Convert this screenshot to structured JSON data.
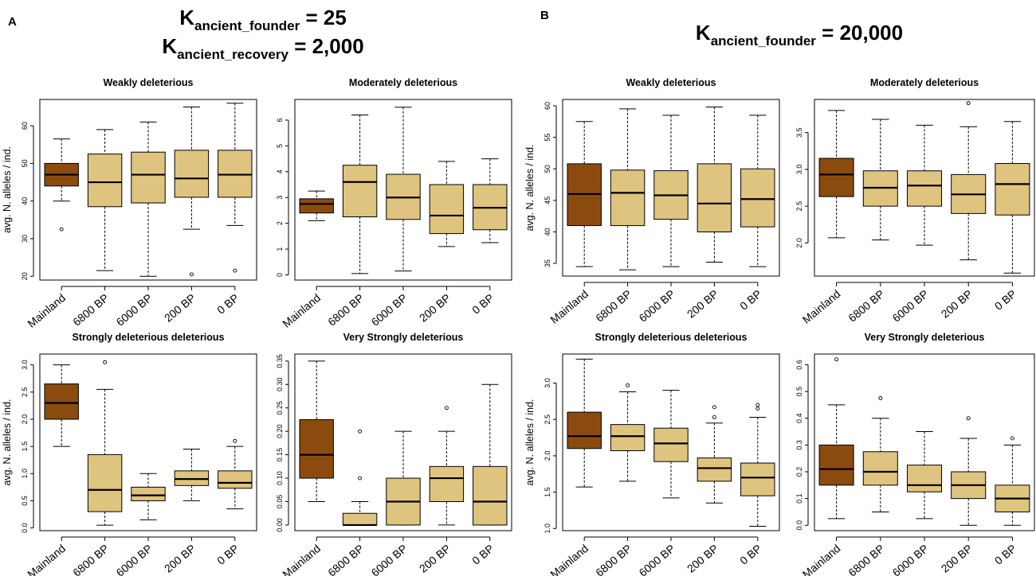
{
  "figure": {
    "panel_a_letter": "A",
    "panel_b_letter": "B",
    "header_a": [
      {
        "main": "K",
        "sub": "ancient_founder",
        "rest": " = 25"
      },
      {
        "main": "K",
        "sub": "ancient_recovery",
        "rest": " = 2,000"
      }
    ],
    "header_b": [
      {
        "main": "K",
        "sub": "ancient_founder",
        "rest": " = 20,000"
      }
    ]
  },
  "colors": {
    "mainland": "#8B4B0E",
    "island": "#DFC47F"
  },
  "chart_data": [
    {
      "type": "box",
      "panel": "A",
      "title": "Weakly deleterious",
      "ylabel": "avg. N. alleles / ind.",
      "categories": [
        "Mainland",
        "6800 BP",
        "6000 BP",
        "200 BP",
        "0 BP"
      ],
      "ylim": [
        19,
        67
      ],
      "yticks": [
        20,
        30,
        40,
        50,
        60
      ],
      "boxes": [
        {
          "min": 40,
          "q1": 44,
          "median": 47,
          "q3": 50,
          "max": 56.5,
          "outliers": [
            32.5
          ]
        },
        {
          "min": 21.5,
          "q1": 38.5,
          "median": 45,
          "q3": 52.5,
          "max": 59,
          "outliers": []
        },
        {
          "min": 20,
          "q1": 39.5,
          "median": 47,
          "q3": 53,
          "max": 61,
          "outliers": []
        },
        {
          "min": 32.5,
          "q1": 41,
          "median": 46,
          "q3": 53.5,
          "max": 65,
          "outliers": [
            20.5
          ]
        },
        {
          "min": 33.5,
          "q1": 41,
          "median": 47,
          "q3": 53.5,
          "max": 66,
          "outliers": [
            21.5
          ]
        }
      ]
    },
    {
      "type": "box",
      "panel": "A",
      "title": "Moderately deleterious",
      "ylabel": "",
      "categories": [
        "Mainland",
        "6800 BP",
        "6000 BP",
        "200 BP",
        "0 BP"
      ],
      "ylim": [
        -0.2,
        6.8
      ],
      "yticks": [
        0,
        1,
        2,
        3,
        4,
        5,
        6
      ],
      "boxes": [
        {
          "min": 2.1,
          "q1": 2.4,
          "median": 2.75,
          "q3": 2.95,
          "max": 3.25,
          "outliers": []
        },
        {
          "min": 0.05,
          "q1": 2.25,
          "median": 3.6,
          "q3": 4.25,
          "max": 6.2,
          "outliers": []
        },
        {
          "min": 0.15,
          "q1": 2.15,
          "median": 3.0,
          "q3": 3.9,
          "max": 6.5,
          "outliers": []
        },
        {
          "min": 1.1,
          "q1": 1.6,
          "median": 2.3,
          "q3": 3.5,
          "max": 4.4,
          "outliers": []
        },
        {
          "min": 1.25,
          "q1": 1.75,
          "median": 2.6,
          "q3": 3.5,
          "max": 4.5,
          "outliers": []
        }
      ]
    },
    {
      "type": "box",
      "panel": "A",
      "title": "Strongly deleterious deleterious",
      "ylabel": "avg. N. alleles / ind.",
      "categories": [
        "Mainland",
        "6800 BP",
        "6000 BP",
        "200 BP",
        "0 BP"
      ],
      "ylim": [
        -0.05,
        3.2
      ],
      "yticks": [
        0.0,
        0.5,
        1.0,
        1.5,
        2.0,
        2.5,
        3.0
      ],
      "boxes": [
        {
          "min": 1.5,
          "q1": 2.0,
          "median": 2.3,
          "q3": 2.65,
          "max": 3.0,
          "outliers": []
        },
        {
          "min": 0.05,
          "q1": 0.3,
          "median": 0.7,
          "q3": 1.35,
          "max": 2.55,
          "outliers": [
            3.05
          ]
        },
        {
          "min": 0.15,
          "q1": 0.5,
          "median": 0.6,
          "q3": 0.75,
          "max": 1.0,
          "outliers": []
        },
        {
          "min": 0.5,
          "q1": 0.78,
          "median": 0.9,
          "q3": 1.05,
          "max": 1.45,
          "outliers": []
        },
        {
          "min": 0.35,
          "q1": 0.73,
          "median": 0.83,
          "q3": 1.05,
          "max": 1.5,
          "outliers": [
            1.6
          ]
        }
      ]
    },
    {
      "type": "box",
      "panel": "A",
      "title": "Very Strongly deleterious",
      "ylabel": "",
      "categories": [
        "Mainland",
        "6800 BP",
        "6000 BP",
        "200 BP",
        "0 BP"
      ],
      "ylim": [
        -0.012,
        0.365
      ],
      "yticks": [
        0.0,
        0.05,
        0.1,
        0.15,
        0.2,
        0.25,
        0.3,
        0.35
      ],
      "boxes": [
        {
          "min": 0.05,
          "q1": 0.1,
          "median": 0.15,
          "q3": 0.225,
          "max": 0.35,
          "outliers": []
        },
        {
          "min": 0.0,
          "q1": 0.0,
          "median": 0.0,
          "q3": 0.025,
          "max": 0.05,
          "outliers": [
            0.1,
            0.2
          ]
        },
        {
          "min": 0.0,
          "q1": 0.0,
          "median": 0.05,
          "q3": 0.1,
          "max": 0.2,
          "outliers": []
        },
        {
          "min": 0.0,
          "q1": 0.05,
          "median": 0.1,
          "q3": 0.125,
          "max": 0.2,
          "outliers": [
            0.25
          ]
        },
        {
          "min": 0.0,
          "q1": 0.0,
          "median": 0.05,
          "q3": 0.125,
          "max": 0.3,
          "outliers": []
        }
      ]
    },
    {
      "type": "box",
      "panel": "B",
      "title": "Weakly deleterious",
      "ylabel": "avg. N. alleles / ind.",
      "categories": [
        "Mainland",
        "6800 BP",
        "6000 BP",
        "200 BP",
        "0 BP"
      ],
      "ylim": [
        33,
        61
      ],
      "yticks": [
        35,
        40,
        45,
        50,
        55,
        60
      ],
      "boxes": [
        {
          "min": 34.5,
          "q1": 41,
          "median": 46,
          "q3": 50.8,
          "max": 57.5,
          "outliers": []
        },
        {
          "min": 34,
          "q1": 41,
          "median": 46.2,
          "q3": 49.8,
          "max": 59.5,
          "outliers": []
        },
        {
          "min": 34.5,
          "q1": 42,
          "median": 45.8,
          "q3": 49.7,
          "max": 58.5,
          "outliers": []
        },
        {
          "min": 35.2,
          "q1": 40,
          "median": 44.5,
          "q3": 50.8,
          "max": 59.8,
          "outliers": []
        },
        {
          "min": 34.5,
          "q1": 40.8,
          "median": 45.2,
          "q3": 50,
          "max": 58.5,
          "outliers": []
        }
      ]
    },
    {
      "type": "box",
      "panel": "B",
      "title": "Moderately deleterious",
      "ylabel": "",
      "categories": [
        "Mainland",
        "6800 BP",
        "6000 BP",
        "200 BP",
        "0 BP"
      ],
      "ylim": [
        1.55,
        3.95
      ],
      "yticks": [
        2.0,
        2.5,
        3.0,
        3.5
      ],
      "boxes": [
        {
          "min": 2.07,
          "q1": 2.63,
          "median": 2.93,
          "q3": 3.15,
          "max": 3.8,
          "outliers": []
        },
        {
          "min": 2.04,
          "q1": 2.5,
          "median": 2.75,
          "q3": 2.98,
          "max": 3.68,
          "outliers": []
        },
        {
          "min": 1.97,
          "q1": 2.5,
          "median": 2.78,
          "q3": 2.98,
          "max": 3.6,
          "outliers": []
        },
        {
          "min": 1.77,
          "q1": 2.4,
          "median": 2.66,
          "q3": 2.93,
          "max": 3.58,
          "outliers": [
            3.9
          ]
        },
        {
          "min": 1.59,
          "q1": 2.38,
          "median": 2.8,
          "q3": 3.08,
          "max": 3.65,
          "outliers": []
        }
      ]
    },
    {
      "type": "box",
      "panel": "B",
      "title": "Strongly deleterious deleterious",
      "ylabel": "avg. N. alleles / ind.",
      "categories": [
        "Mainland",
        "6800 BP",
        "6000 BP",
        "200 BP",
        "0 BP"
      ],
      "ylim": [
        0.97,
        3.4
      ],
      "yticks": [
        1.0,
        1.5,
        2.0,
        2.5,
        3.0
      ],
      "boxes": [
        {
          "min": 1.57,
          "q1": 2.1,
          "median": 2.27,
          "q3": 2.6,
          "max": 3.33,
          "outliers": []
        },
        {
          "min": 1.65,
          "q1": 2.07,
          "median": 2.27,
          "q3": 2.43,
          "max": 2.88,
          "outliers": [
            2.97
          ]
        },
        {
          "min": 1.42,
          "q1": 1.92,
          "median": 2.17,
          "q3": 2.38,
          "max": 2.9,
          "outliers": []
        },
        {
          "min": 1.35,
          "q1": 1.65,
          "median": 1.83,
          "q3": 1.97,
          "max": 2.45,
          "outliers": [
            2.53,
            2.67
          ]
        },
        {
          "min": 1.03,
          "q1": 1.45,
          "median": 1.7,
          "q3": 1.9,
          "max": 2.53,
          "outliers": [
            2.65,
            2.7
          ]
        }
      ]
    },
    {
      "type": "box",
      "panel": "B",
      "title": "Very Strongly deleterious",
      "ylabel": "",
      "categories": [
        "Mainland",
        "6800 BP",
        "6000 BP",
        "200 BP",
        "0 BP"
      ],
      "ylim": [
        -0.02,
        0.64
      ],
      "yticks": [
        0.0,
        0.1,
        0.2,
        0.3,
        0.4,
        0.5,
        0.6
      ],
      "boxes": [
        {
          "min": 0.025,
          "q1": 0.15,
          "median": 0.21,
          "q3": 0.3,
          "max": 0.45,
          "outliers": [
            0.62
          ]
        },
        {
          "min": 0.05,
          "q1": 0.15,
          "median": 0.2,
          "q3": 0.275,
          "max": 0.4,
          "outliers": [
            0.475
          ]
        },
        {
          "min": 0.025,
          "q1": 0.125,
          "median": 0.15,
          "q3": 0.225,
          "max": 0.35,
          "outliers": []
        },
        {
          "min": 0.0,
          "q1": 0.1,
          "median": 0.15,
          "q3": 0.2,
          "max": 0.325,
          "outliers": [
            0.4
          ]
        },
        {
          "min": 0.0,
          "q1": 0.05,
          "median": 0.1,
          "q3": 0.15,
          "max": 0.3,
          "outliers": [
            0.325
          ]
        }
      ]
    }
  ]
}
